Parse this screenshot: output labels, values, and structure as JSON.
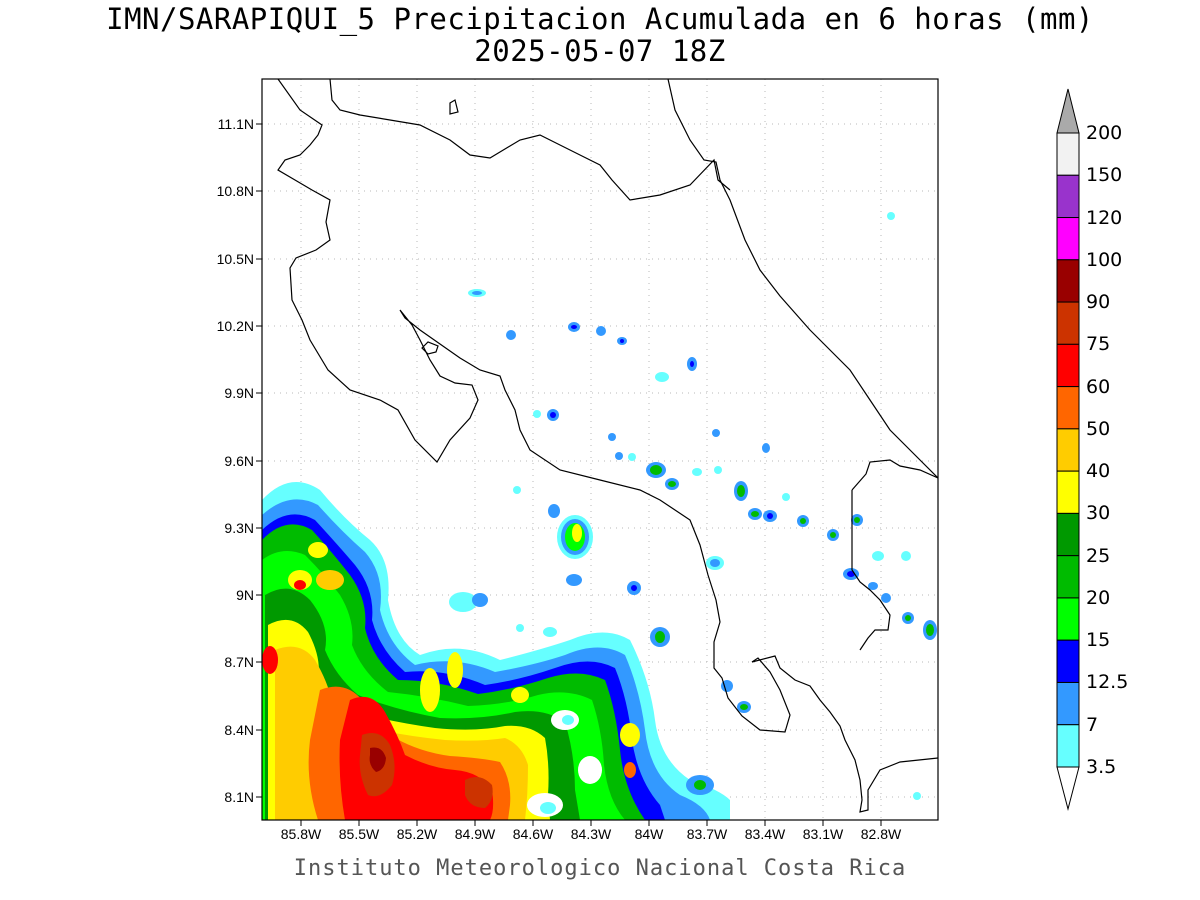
{
  "title_line1": "IMN/SARAPIQUI_5 Precipitacion Acumulada en 6 horas (mm)",
  "title_line2": "2025-05-07 18Z",
  "footer": "Instituto Meteorologico Nacional Costa Rica",
  "y_ticks": [
    "11.1N",
    "10.8N",
    "10.5N",
    "10.2N",
    "9.9N",
    "9.6N",
    "9.3N",
    "9N",
    "8.7N",
    "8.4N",
    "8.1N"
  ],
  "x_ticks": [
    "85.8W",
    "85.5W",
    "85.2W",
    "84.9W",
    "84.6W",
    "84.3W",
    "84W",
    "83.7W",
    "83.4W",
    "83.1W",
    "82.8W"
  ],
  "colorbar": {
    "labels": [
      "200",
      "150",
      "120",
      "100",
      "90",
      "75",
      "60",
      "50",
      "40",
      "30",
      "25",
      "20",
      "15",
      "12.5",
      "7",
      "3.5"
    ],
    "colors": [
      "#f2f2f2",
      "#9933cc",
      "#ff00ff",
      "#990000",
      "#cc3300",
      "#ff0000",
      "#ff6600",
      "#ffcc00",
      "#ffff00",
      "#009900",
      "#00bb00",
      "#00ff00",
      "#0000ff",
      "#3399ff",
      "#66ffff"
    ],
    "over_color": "#aaaaaa",
    "under_color": "#ffffff"
  },
  "map": {
    "lon_range": [
      -86.05,
      -82.55
    ],
    "lat_range": [
      8.0,
      11.25
    ],
    "grid": true
  }
}
